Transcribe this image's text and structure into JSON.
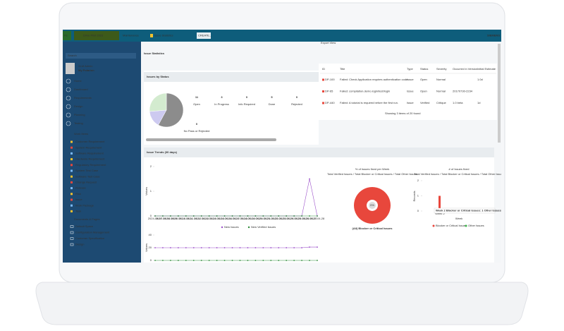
{
  "topbar": {
    "badge": "Ps",
    "project": "Drive Pilot 2023",
    "breadcrumb": [
      "Maintenance",
      "Issue Statistics"
    ],
    "create": "CREATE...",
    "brand": "SIEMENS"
  },
  "sidebar": {
    "search": "Search",
    "user": "XLM Admin",
    "user_sub": "My Polarion",
    "nav": [
      "Home",
      "Dashboard",
      "Requirements",
      "Design",
      "Planning",
      "Testing"
    ],
    "work_items": "Work Items",
    "work_item_types": [
      "Customer Requirement",
      "System Requirement",
      "Software Requirement",
      "Hardware Requirement",
      "Regulatory Requirement",
      "System Test Case",
      "Software Test Case",
      "Change Request",
      "Release",
      "Risk",
      "Issue",
      "Work Package",
      "Task"
    ],
    "documents": "Documents & Pages",
    "folders": [
      "Default Space",
      "Configuration Management",
      "Customer Specification",
      "Design"
    ]
  },
  "page": {
    "title": "Issue Statistics",
    "export": "Export View"
  },
  "status": {
    "title": "Issues by Status",
    "stats": [
      {
        "value": 11,
        "label": "Open",
        "color": "#777777",
        "slice_color": "#8c8c8c"
      },
      {
        "value": 3,
        "label": "In Progress",
        "color": "#1f3fbf",
        "slice_color": "#cdcaf0"
      },
      {
        "value": 0,
        "label": "Info Required",
        "color": "#d62b2b",
        "slice_color": "#f0b0b0"
      },
      {
        "value": 5,
        "label": "Done",
        "color": "#2e9e3a",
        "slice_color": "#d3ebcf"
      },
      {
        "value": 0,
        "label": "Rejected",
        "color": "#d62b2b",
        "slice_color": "#f0b0b0"
      },
      {
        "value": 0,
        "label": "No Pass or Rejected",
        "color": "#1f5fbf",
        "slice_color": "#b0c8f0"
      }
    ]
  },
  "table": {
    "headers": [
      "ID",
      "Title",
      "Type",
      "Status",
      "Severity",
      "Occurred in Version",
      "Initial Estimate"
    ],
    "rows": [
      [
        "DP-100",
        "Failed: Check Application requires authentication code",
        "Issue",
        "Open",
        "Normal",
        "",
        "1.0d"
      ],
      [
        "DP-65",
        "Failed: compilation.demo.login/test/login",
        "Issue",
        "Open",
        "Normal",
        "20170730-2234",
        ""
      ],
      [
        "DP-440",
        "Failed: A tutorial is required before the first run.",
        "Issue",
        "Verified",
        "Critique",
        "1.0 beta",
        "1d"
      ]
    ],
    "footer": "Showing 3 items of 20 found"
  },
  "trends": {
    "title": "Issue Trends (30 days)",
    "line_chart": {
      "type": "line",
      "y_label": "Values",
      "x": [
        "2024-04-07",
        "2024-04-08",
        "2024-04-09",
        "2024-04-10",
        "2024-04-11",
        "2024-04-12",
        "2024-04-13",
        "2024-04-14",
        "2024-04-15",
        "2024-04-16",
        "2024-04-17",
        "2024-04-18",
        "2024-04-19",
        "2024-04-20",
        "2024-04-21",
        "2024-04-22",
        "2024-04-23",
        "2024-04-24",
        "2024-04-25",
        "2024-04-26",
        "2024-04-27",
        "2024-04-28"
      ],
      "ylim": [
        0,
        2
      ],
      "yticks": [
        0,
        1,
        2
      ],
      "series": [
        {
          "name": "New Issues",
          "color": "#9b4fc9",
          "values": [
            0,
            0,
            0,
            0,
            0,
            0,
            0,
            0,
            0,
            0,
            0,
            0,
            0,
            0,
            0,
            0,
            0,
            0,
            0,
            0,
            1.5,
            0
          ]
        },
        {
          "name": "New Verified Issues",
          "color": "#2e8b3a",
          "values": [
            0,
            0,
            0,
            0,
            0,
            0,
            0,
            0,
            0,
            0,
            0,
            0,
            0,
            0,
            0,
            0,
            0,
            0,
            0,
            0,
            0,
            0
          ]
        }
      ]
    },
    "total_chart": {
      "type": "line",
      "y_label": "Values",
      "ylim": [
        0,
        40
      ],
      "yticks": [
        0,
        20,
        40
      ],
      "series": [
        {
          "color": "#9b4fc9",
          "values": [
            20,
            20,
            20,
            20,
            20,
            20,
            20,
            20,
            20,
            20,
            20,
            20,
            20,
            20,
            20,
            20,
            20,
            20,
            20,
            20,
            21,
            21
          ]
        },
        {
          "color": "#2e8b3a",
          "values": [
            0,
            0,
            0,
            0,
            0,
            0,
            0,
            0,
            0,
            0,
            0,
            0,
            0,
            0,
            0,
            0,
            0,
            0,
            0,
            0,
            0,
            0
          ]
        }
      ]
    }
  },
  "donut": {
    "type": "pie",
    "title": "% of Issues fixed per Week",
    "subtitle": "Total Verified Issues / Total Blocker or Critical Issues / Total Other Issues",
    "center_label": "0%",
    "values": [
      100
    ],
    "color": "#e8473c",
    "legend": "(All) Blocker or Critical Issues"
  },
  "bar_chart": {
    "type": "bar",
    "title": "# of Issues fixed",
    "subtitle": "Total Verified Issues / Total Blocker or Critical Issues / Total Other Issues",
    "y_label": "Records",
    "x_label": "Week",
    "ylim": [
      0,
      2
    ],
    "yticks": [
      0,
      1,
      2
    ],
    "categories": [
      "Week 2"
    ],
    "tooltip": "Week 2 Blocker or Critical Issues: 1 Other Issues: 0",
    "series": [
      {
        "name": "Blocker or Critical Issues",
        "color": "#e8473c",
        "values": [
          1
        ]
      },
      {
        "name": "Other Issues",
        "color": "#3cb44b",
        "values": [
          0
        ]
      }
    ]
  }
}
